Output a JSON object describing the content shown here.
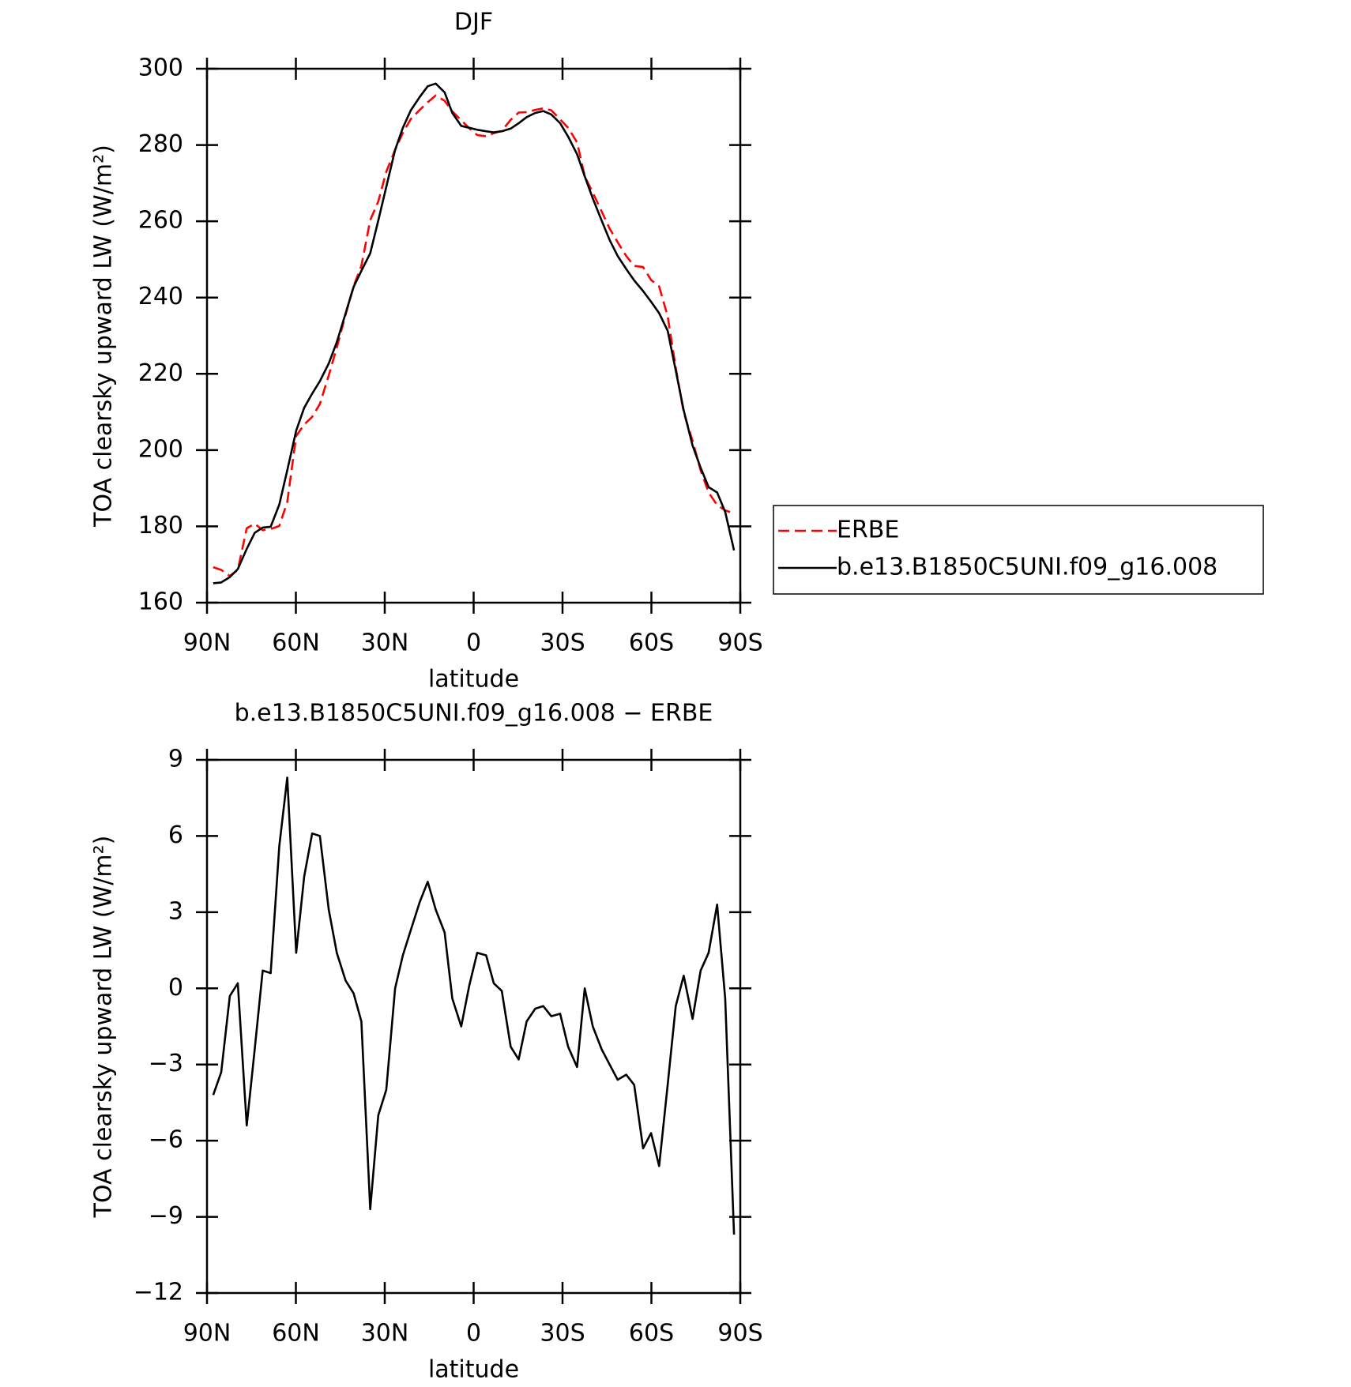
{
  "chart_data": [
    {
      "type": "line",
      "title": "DJF",
      "xlabel": "latitude",
      "ylabel": "TOA clearsky upward LW (W/m²)",
      "x": [
        87.9,
        85.2,
        82.3,
        79.6,
        76.6,
        73.9,
        71.2,
        68.5,
        65.6,
        62.9,
        59.9,
        57.2,
        54.5,
        51.9,
        48.9,
        46.2,
        43.2,
        40.5,
        37.9,
        34.9,
        32.2,
        29.5,
        26.5,
        23.9,
        21.2,
        18.2,
        15.5,
        12.8,
        9.8,
        7.2,
        4.2,
        1.5,
        -1.2,
        -4.2,
        -6.8,
        -9.5,
        -12.5,
        -15.2,
        -17.9,
        -20.8,
        -23.5,
        -26.2,
        -29.2,
        -31.9,
        -34.9,
        -37.5,
        -40.2,
        -43.2,
        -45.9,
        -48.6,
        -51.5,
        -54.2,
        -57.2,
        -59.9,
        -62.6,
        -65.5,
        -68.2,
        -70.9,
        -73.9,
        -76.6,
        -79.3,
        -82.2,
        -84.9,
        -87.9
      ],
      "series": [
        {
          "name": "ERBE",
          "color": "#ff0000",
          "linestyle": "dashed",
          "values": [
            169.3,
            168.6,
            167.0,
            168.6,
            179.5,
            180.7,
            179.0,
            179.3,
            180.1,
            186.4,
            203.7,
            206.7,
            208.7,
            212.1,
            219.6,
            226.9,
            235.6,
            243.0,
            248.3,
            260.3,
            265.2,
            273.0,
            278.7,
            283.2,
            286.8,
            289.2,
            291.2,
            293.0,
            291.6,
            288.8,
            286.5,
            284.4,
            282.6,
            282.3,
            283.1,
            283.7,
            286.6,
            288.5,
            288.6,
            289.2,
            289.6,
            289.1,
            286.7,
            284.5,
            280.7,
            271.8,
            267.5,
            262.6,
            258.1,
            254.5,
            250.9,
            248.3,
            248.0,
            244.6,
            242.9,
            235.1,
            221.6,
            209.9,
            202.4,
            194.7,
            188.9,
            185.6,
            184.2,
            183.4
          ]
        },
        {
          "name": "b.e13.B1850C5UNI.f09_g16.008",
          "color": "#000000",
          "linestyle": "solid",
          "values": [
            165.1,
            165.3,
            166.7,
            168.8,
            174.1,
            178.3,
            179.7,
            179.9,
            185.7,
            194.7,
            205.1,
            211.1,
            214.8,
            218.1,
            222.7,
            228.3,
            235.9,
            242.8,
            247.0,
            251.6,
            260.2,
            269.0,
            278.7,
            284.5,
            289.1,
            292.6,
            295.4,
            296.1,
            293.8,
            288.4,
            285.0,
            284.5,
            284.0,
            283.6,
            283.3,
            283.6,
            284.3,
            285.7,
            287.3,
            288.4,
            288.9,
            288.0,
            285.7,
            282.2,
            277.6,
            271.8,
            266.0,
            260.2,
            255.1,
            250.9,
            247.5,
            244.5,
            241.7,
            238.9,
            235.9,
            231.3,
            220.9,
            210.4,
            201.2,
            195.4,
            190.3,
            188.9,
            183.8,
            173.7
          ]
        }
      ],
      "xlim": [
        90,
        -90
      ],
      "xticks": [
        {
          "value": 90,
          "label": "90N"
        },
        {
          "value": 60,
          "label": "60N"
        },
        {
          "value": 30,
          "label": "30N"
        },
        0,
        {
          "value": -30,
          "label": "30S"
        },
        {
          "value": -60,
          "label": "60S"
        },
        {
          "value": -90,
          "label": "90S"
        }
      ],
      "ylim": [
        160,
        300
      ],
      "yticks": [
        160,
        180,
        200,
        220,
        240,
        260,
        280,
        300
      ],
      "legend": "right"
    },
    {
      "type": "line",
      "title": "b.e13.B1850C5UNI.f09_g16.008 − ERBE",
      "xlabel": "latitude",
      "ylabel": "TOA clearsky upward LW (W/m²)",
      "x": [
        87.9,
        85.2,
        82.3,
        79.6,
        76.6,
        73.9,
        71.2,
        68.5,
        65.6,
        62.9,
        59.9,
        57.2,
        54.5,
        51.9,
        48.9,
        46.2,
        43.2,
        40.5,
        37.9,
        34.9,
        32.2,
        29.5,
        26.5,
        23.9,
        21.2,
        18.2,
        15.5,
        12.8,
        9.8,
        7.2,
        4.2,
        1.5,
        -1.2,
        -4.2,
        -6.8,
        -9.5,
        -12.5,
        -15.2,
        -17.9,
        -20.8,
        -23.5,
        -26.2,
        -29.2,
        -31.9,
        -34.9,
        -37.5,
        -40.2,
        -43.2,
        -45.9,
        -48.6,
        -51.5,
        -54.2,
        -57.2,
        -59.9,
        -62.6,
        -65.5,
        -68.2,
        -70.9,
        -73.9,
        -76.6,
        -79.3,
        -82.2,
        -84.9,
        -87.9
      ],
      "values": [
        -4.2,
        -3.3,
        -0.3,
        0.2,
        -5.4,
        -2.4,
        0.7,
        0.6,
        5.6,
        8.3,
        1.4,
        4.4,
        6.1,
        6.0,
        3.1,
        1.4,
        0.3,
        -0.2,
        -1.3,
        -8.7,
        -5.0,
        -4.0,
        0.0,
        1.3,
        2.3,
        3.4,
        4.2,
        3.1,
        2.2,
        -0.4,
        -1.5,
        0.1,
        1.4,
        1.3,
        0.2,
        -0.1,
        -2.3,
        -2.8,
        -1.3,
        -0.8,
        -0.7,
        -1.1,
        -1.0,
        -2.3,
        -3.1,
        0.0,
        -1.5,
        -2.4,
        -3.0,
        -3.6,
        -3.4,
        -3.8,
        -6.3,
        -5.7,
        -7.0,
        -3.8,
        -0.7,
        0.5,
        -1.2,
        0.7,
        1.4,
        3.3,
        -0.4,
        -9.7
      ],
      "color": "#000000",
      "xlim": [
        90,
        -90
      ],
      "xticks": [
        {
          "value": 90,
          "label": "90N"
        },
        {
          "value": 60,
          "label": "60N"
        },
        {
          "value": 30,
          "label": "30N"
        },
        0,
        {
          "value": -30,
          "label": "30S"
        },
        {
          "value": -60,
          "label": "60S"
        },
        {
          "value": -90,
          "label": "90S"
        }
      ],
      "ylim": [
        -12,
        9
      ],
      "yticks": [
        {
          "value": -12,
          "label": "−12"
        },
        {
          "value": -9,
          "label": "−9"
        },
        {
          "value": -6,
          "label": "−6"
        },
        {
          "value": -3,
          "label": "−3"
        },
        0,
        3,
        6,
        9
      ]
    }
  ]
}
